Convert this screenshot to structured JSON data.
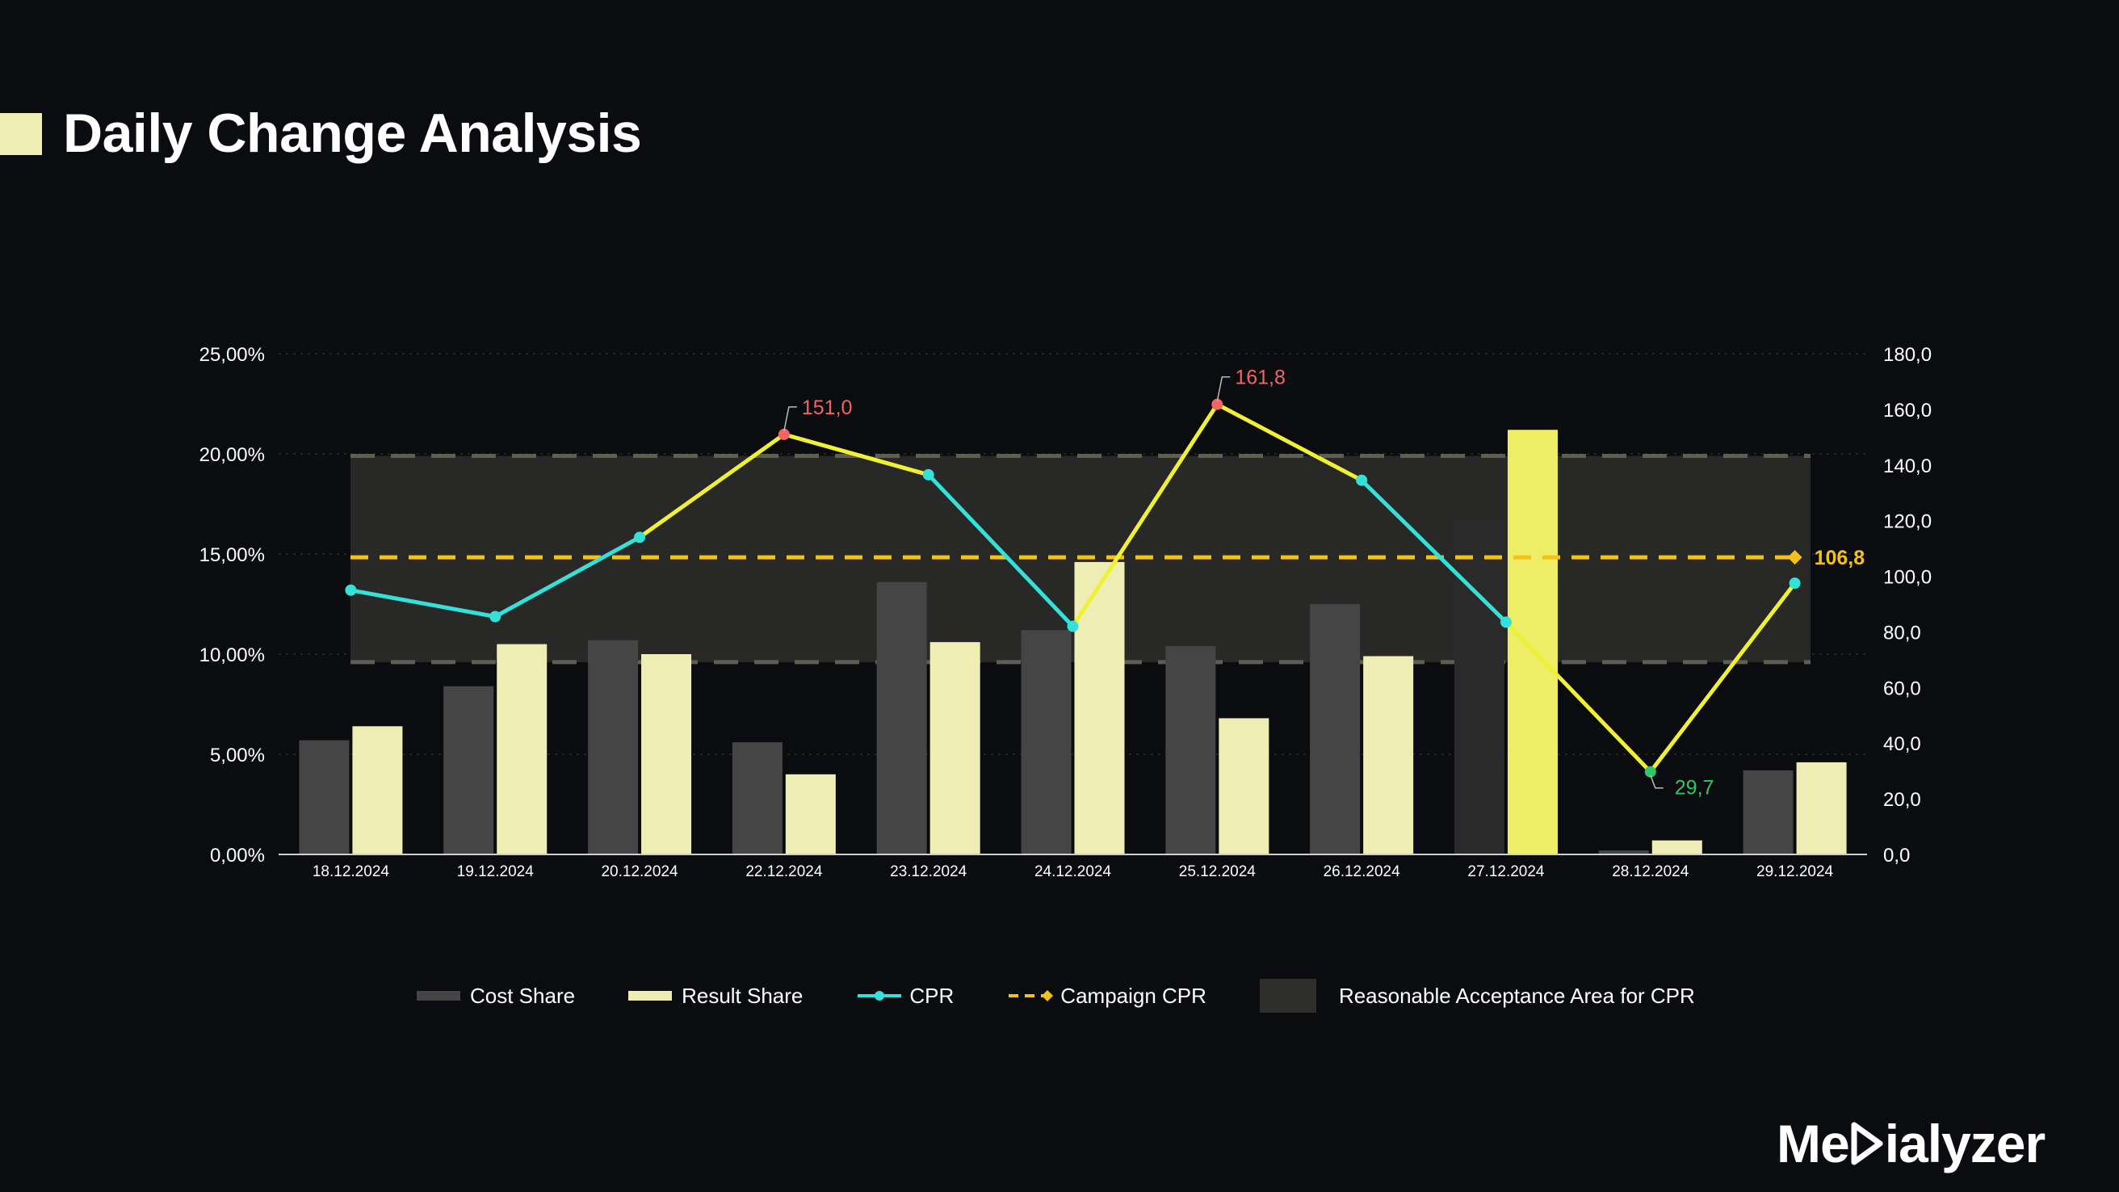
{
  "page": {
    "title": "Daily Change Analysis",
    "brand": "Medialyzer",
    "brand_prefix": "Me",
    "brand_suffix": "ialyzer"
  },
  "colors": {
    "background": "#0b0c10",
    "cost_share": "#454545",
    "cost_share_highlight": "#2a2a2a",
    "result_share": "#eeeeb4",
    "result_share_highlight": "#eeee66",
    "cpr": "#34e0d8",
    "cpr_out_of_range": "#f0f034",
    "campaign_cpr": "#f2c21b",
    "acceptance_area": "#2e2e2b",
    "acceptance_border": "#5e5e52",
    "label_high": "#f06464",
    "label_low": "#2ec86a",
    "grid": "#2a2a2a"
  },
  "chart_data": {
    "type": "bar",
    "title": "Daily Change Analysis",
    "categories": [
      "18.12.2024",
      "19.12.2024",
      "20.12.2024",
      "22.12.2024",
      "23.12.2024",
      "24.12.2024",
      "25.12.2024",
      "26.12.2024",
      "27.12.2024",
      "28.12.2024",
      "29.12.2024"
    ],
    "series": [
      {
        "name": "Cost Share",
        "type": "bar",
        "axis": "left",
        "unit": "%",
        "values": [
          5.7,
          8.4,
          10.7,
          5.6,
          13.6,
          11.2,
          10.4,
          12.5,
          16.7,
          0.2,
          4.2
        ]
      },
      {
        "name": "Result Share",
        "type": "bar",
        "axis": "left",
        "unit": "%",
        "values": [
          6.4,
          10.5,
          10.0,
          4.0,
          10.6,
          14.6,
          6.8,
          9.9,
          21.2,
          0.7,
          4.6
        ]
      },
      {
        "name": "CPR",
        "type": "line",
        "axis": "right",
        "values": [
          95.0,
          85.5,
          114.0,
          151.0,
          136.5,
          82.0,
          161.8,
          134.5,
          83.5,
          29.7,
          97.5
        ]
      },
      {
        "name": "Campaign CPR",
        "type": "line",
        "style": "dashed",
        "axis": "right",
        "value": 106.8
      }
    ],
    "acceptance_area": {
      "name": "Reasonable Acceptance Area for CPR",
      "axis": "left",
      "range_percent": [
        9.6,
        19.9
      ]
    },
    "highlight_category": "27.12.2024",
    "y_left": {
      "min": 0,
      "max": 25,
      "ticks": [
        "0,00%",
        "5,00%",
        "10,00%",
        "15,00%",
        "20,00%",
        "25,00%"
      ]
    },
    "y_right": {
      "min": 0,
      "max": 180,
      "ticks": [
        "0,0",
        "20,0",
        "40,0",
        "60,0",
        "80,0",
        "100,0",
        "120,0",
        "140,0",
        "160,0",
        "180,0"
      ]
    },
    "data_labels": [
      {
        "category": "22.12.2024",
        "text": "151,0",
        "kind": "high"
      },
      {
        "category": "25.12.2024",
        "text": "161,8",
        "kind": "high"
      },
      {
        "category": "28.12.2024",
        "text": "29,7",
        "kind": "low"
      },
      {
        "category": "29.12.2024",
        "text": "106,8",
        "kind": "campaign"
      }
    ],
    "legend": [
      "Cost Share",
      "Result Share",
      "CPR",
      "Campaign CPR",
      "Reasonable Acceptance Area for CPR"
    ],
    "legend_position": "bottom",
    "grid": true
  }
}
